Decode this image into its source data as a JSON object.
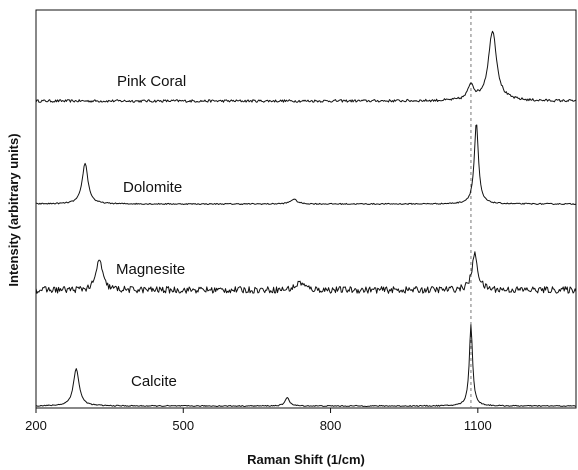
{
  "chart_data": {
    "type": "line",
    "title": "",
    "xlabel": "Raman Shift (1/cm)",
    "ylabel": "Intensity (arbitrary units)",
    "xlim": [
      200,
      1300
    ],
    "x_ticks": [
      200,
      500,
      800,
      1100
    ],
    "y_scale": "arbitrary (stacked traces)",
    "grid": false,
    "legend": "none (labels placed beside traces)",
    "reference_line": {
      "x": 1086,
      "style": "dashed",
      "color": "#777777"
    },
    "series": [
      {
        "name": "Pink Coral",
        "noise": 0.03,
        "peaks": [
          {
            "x": 1086,
            "height": 0.35,
            "width": 7
          },
          {
            "x": 1130,
            "height": 1.6,
            "width": 10
          }
        ]
      },
      {
        "name": "Dolomite",
        "noise": 0.012,
        "peaks": [
          {
            "x": 300,
            "height": 0.85,
            "width": 7
          },
          {
            "x": 725,
            "height": 0.1,
            "width": 8
          },
          {
            "x": 1097,
            "height": 1.7,
            "width": 5
          }
        ]
      },
      {
        "name": "Magnesite",
        "noise": 0.08,
        "peaks": [
          {
            "x": 329,
            "height": 0.75,
            "width": 7
          },
          {
            "x": 738,
            "height": 0.18,
            "width": 10
          },
          {
            "x": 1094,
            "height": 0.85,
            "width": 7
          }
        ]
      },
      {
        "name": "Calcite",
        "noise": 0.012,
        "peaks": [
          {
            "x": 282,
            "height": 0.85,
            "width": 7
          },
          {
            "x": 712,
            "height": 0.2,
            "width": 5
          },
          {
            "x": 1086,
            "height": 1.85,
            "width": 4
          }
        ]
      }
    ]
  }
}
